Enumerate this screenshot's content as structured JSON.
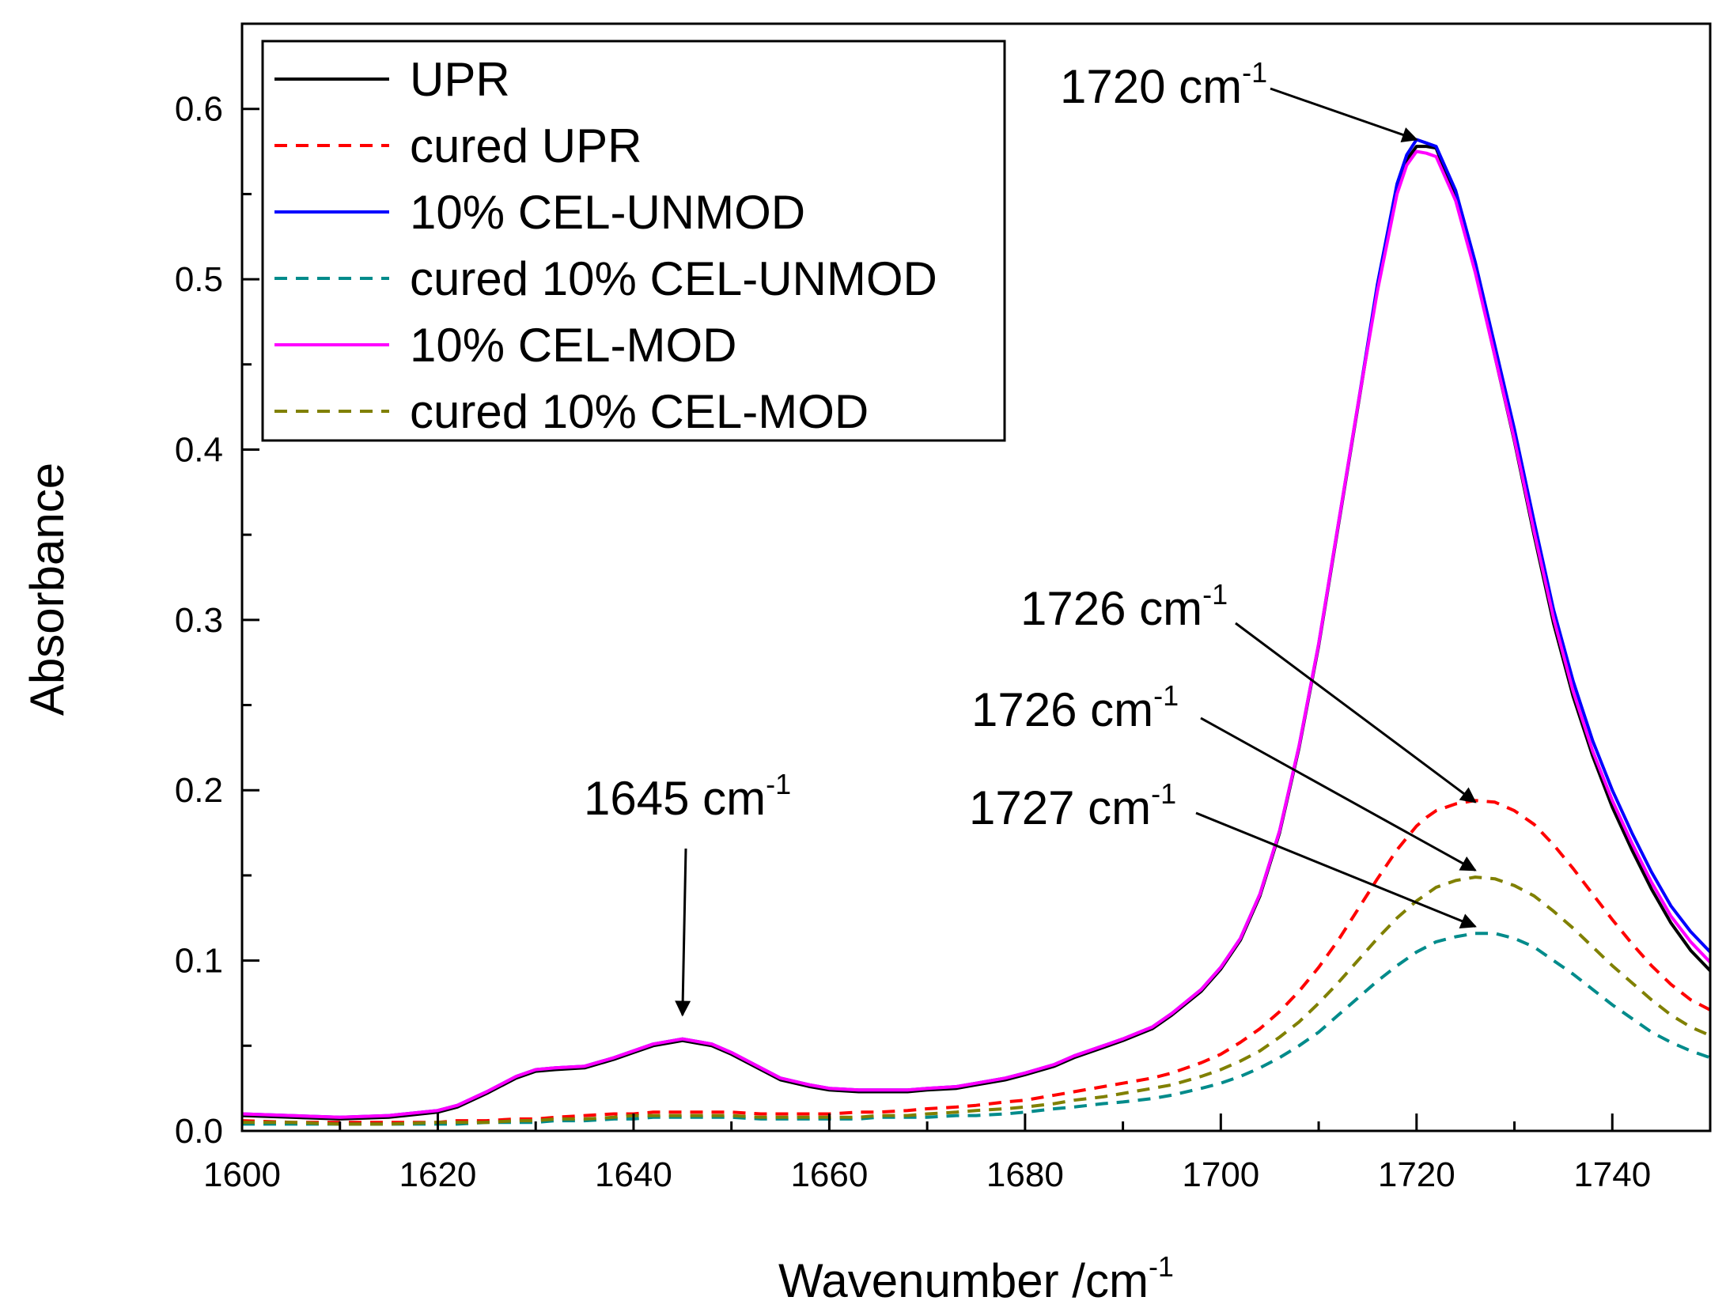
{
  "chart_data": {
    "type": "line",
    "title": "",
    "xlabel": "Wavenumber /cm",
    "xlabel_sup": "-1",
    "ylabel": "Absorbance",
    "xlim": [
      1600,
      1750
    ],
    "ylim": [
      0,
      0.65
    ],
    "x_ticks": [
      1600,
      1620,
      1640,
      1660,
      1680,
      1700,
      1720,
      1740
    ],
    "x_tick_labels": [
      "1600",
      "1620",
      "1640",
      "1660",
      "1680",
      "1700",
      "1720",
      "1740"
    ],
    "y_ticks": [
      0,
      0.1,
      0.2,
      0.3,
      0.4,
      0.5,
      0.6
    ],
    "y_tick_labels": [
      "0.0",
      "0.1",
      "0.2",
      "0.3",
      "0.4",
      "0.5",
      "0.6"
    ],
    "legend_position": "top-left",
    "x": [
      1600,
      1605,
      1610,
      1615,
      1620,
      1622,
      1625,
      1628,
      1630,
      1632,
      1635,
      1638,
      1640,
      1642,
      1645,
      1648,
      1650,
      1653,
      1655,
      1658,
      1660,
      1663,
      1665,
      1668,
      1670,
      1673,
      1675,
      1678,
      1680,
      1683,
      1685,
      1688,
      1690,
      1693,
      1695,
      1698,
      1700,
      1702,
      1704,
      1706,
      1708,
      1710,
      1712,
      1714,
      1716,
      1718,
      1719,
      1720,
      1721,
      1722,
      1724,
      1726,
      1728,
      1730,
      1732,
      1734,
      1736,
      1738,
      1740,
      1742,
      1744,
      1746,
      1748,
      1750
    ],
    "series": [
      {
        "name": "UPR",
        "color": "#000000",
        "dash": "solid",
        "values": [
          0.009,
          0.008,
          0.007,
          0.008,
          0.011,
          0.014,
          0.022,
          0.031,
          0.035,
          0.036,
          0.037,
          0.042,
          0.046,
          0.05,
          0.053,
          0.05,
          0.045,
          0.036,
          0.03,
          0.026,
          0.024,
          0.023,
          0.023,
          0.023,
          0.024,
          0.025,
          0.027,
          0.03,
          0.033,
          0.038,
          0.043,
          0.049,
          0.053,
          0.06,
          0.068,
          0.082,
          0.095,
          0.112,
          0.138,
          0.175,
          0.225,
          0.285,
          0.355,
          0.425,
          0.495,
          0.553,
          0.57,
          0.578,
          0.578,
          0.577,
          0.548,
          0.505,
          0.455,
          0.405,
          0.35,
          0.298,
          0.255,
          0.22,
          0.19,
          0.165,
          0.142,
          0.122,
          0.106,
          0.094
        ]
      },
      {
        "name": "cured UPR",
        "color": "#ff0000",
        "dash": "dashed",
        "values": [
          0.006,
          0.005,
          0.005,
          0.005,
          0.005,
          0.006,
          0.006,
          0.007,
          0.007,
          0.008,
          0.009,
          0.01,
          0.01,
          0.011,
          0.011,
          0.011,
          0.011,
          0.01,
          0.01,
          0.01,
          0.01,
          0.011,
          0.011,
          0.012,
          0.013,
          0.014,
          0.015,
          0.017,
          0.018,
          0.021,
          0.023,
          0.026,
          0.028,
          0.031,
          0.034,
          0.04,
          0.045,
          0.052,
          0.06,
          0.07,
          0.082,
          0.096,
          0.112,
          0.13,
          0.148,
          0.165,
          0.172,
          0.179,
          0.184,
          0.188,
          0.192,
          0.194,
          0.193,
          0.188,
          0.18,
          0.168,
          0.154,
          0.139,
          0.124,
          0.11,
          0.097,
          0.086,
          0.077,
          0.071
        ]
      },
      {
        "name": "10% CEL-UNMOD",
        "color": "#0000ff",
        "dash": "solid",
        "values": [
          0.01,
          0.009,
          0.008,
          0.009,
          0.012,
          0.015,
          0.023,
          0.032,
          0.036,
          0.037,
          0.038,
          0.043,
          0.047,
          0.051,
          0.054,
          0.051,
          0.046,
          0.037,
          0.031,
          0.027,
          0.025,
          0.024,
          0.024,
          0.024,
          0.025,
          0.026,
          0.028,
          0.031,
          0.034,
          0.039,
          0.044,
          0.05,
          0.054,
          0.061,
          0.069,
          0.083,
          0.096,
          0.113,
          0.139,
          0.176,
          0.226,
          0.286,
          0.356,
          0.426,
          0.497,
          0.556,
          0.573,
          0.582,
          0.58,
          0.578,
          0.552,
          0.51,
          0.461,
          0.412,
          0.358,
          0.306,
          0.264,
          0.229,
          0.2,
          0.175,
          0.152,
          0.132,
          0.117,
          0.105
        ]
      },
      {
        "name": "cured 10% CEL-UNMOD",
        "color": "#008b8b",
        "dash": "dashed",
        "values": [
          0.004,
          0.004,
          0.004,
          0.004,
          0.004,
          0.004,
          0.005,
          0.005,
          0.005,
          0.006,
          0.006,
          0.007,
          0.007,
          0.008,
          0.008,
          0.008,
          0.008,
          0.007,
          0.007,
          0.007,
          0.007,
          0.007,
          0.008,
          0.008,
          0.008,
          0.009,
          0.009,
          0.01,
          0.011,
          0.013,
          0.014,
          0.016,
          0.017,
          0.019,
          0.021,
          0.025,
          0.028,
          0.032,
          0.037,
          0.043,
          0.05,
          0.058,
          0.068,
          0.078,
          0.088,
          0.097,
          0.101,
          0.105,
          0.108,
          0.111,
          0.114,
          0.116,
          0.116,
          0.113,
          0.108,
          0.1,
          0.092,
          0.083,
          0.074,
          0.066,
          0.058,
          0.052,
          0.047,
          0.043
        ]
      },
      {
        "name": "10% CEL-MOD",
        "color": "#ff00ff",
        "dash": "solid",
        "values": [
          0.01,
          0.009,
          0.008,
          0.009,
          0.012,
          0.015,
          0.023,
          0.032,
          0.036,
          0.037,
          0.038,
          0.043,
          0.047,
          0.051,
          0.054,
          0.051,
          0.046,
          0.037,
          0.031,
          0.027,
          0.025,
          0.024,
          0.024,
          0.024,
          0.025,
          0.026,
          0.028,
          0.031,
          0.034,
          0.039,
          0.044,
          0.05,
          0.054,
          0.061,
          0.069,
          0.083,
          0.096,
          0.113,
          0.139,
          0.176,
          0.226,
          0.286,
          0.356,
          0.426,
          0.493,
          0.55,
          0.567,
          0.575,
          0.574,
          0.572,
          0.546,
          0.504,
          0.455,
          0.406,
          0.352,
          0.301,
          0.258,
          0.223,
          0.194,
          0.169,
          0.146,
          0.126,
          0.111,
          0.099
        ]
      },
      {
        "name": "cured 10% CEL-MOD",
        "color": "#808000",
        "dash": "dashed",
        "values": [
          0.005,
          0.005,
          0.004,
          0.004,
          0.005,
          0.005,
          0.005,
          0.006,
          0.006,
          0.007,
          0.007,
          0.008,
          0.009,
          0.009,
          0.009,
          0.009,
          0.009,
          0.008,
          0.008,
          0.008,
          0.008,
          0.008,
          0.009,
          0.009,
          0.01,
          0.011,
          0.012,
          0.013,
          0.014,
          0.016,
          0.018,
          0.02,
          0.022,
          0.025,
          0.027,
          0.032,
          0.036,
          0.041,
          0.047,
          0.055,
          0.064,
          0.075,
          0.087,
          0.1,
          0.113,
          0.125,
          0.13,
          0.135,
          0.139,
          0.143,
          0.147,
          0.149,
          0.148,
          0.144,
          0.138,
          0.129,
          0.119,
          0.108,
          0.097,
          0.087,
          0.077,
          0.068,
          0.061,
          0.056
        ]
      }
    ],
    "annotations": [
      {
        "text": "1720 cm",
        "sup": "-1",
        "target": [
          1720,
          0.582
        ]
      },
      {
        "text": "1726 cm",
        "sup": "-1",
        "target": [
          1726,
          0.193
        ]
      },
      {
        "text": "1726 cm",
        "sup": "-1",
        "target": [
          1726,
          0.153
        ]
      },
      {
        "text": "1727 cm",
        "sup": "-1",
        "target": [
          1726,
          0.12
        ]
      },
      {
        "text": "1645 cm",
        "sup": "-1",
        "target": [
          1645,
          0.068
        ]
      }
    ]
  }
}
